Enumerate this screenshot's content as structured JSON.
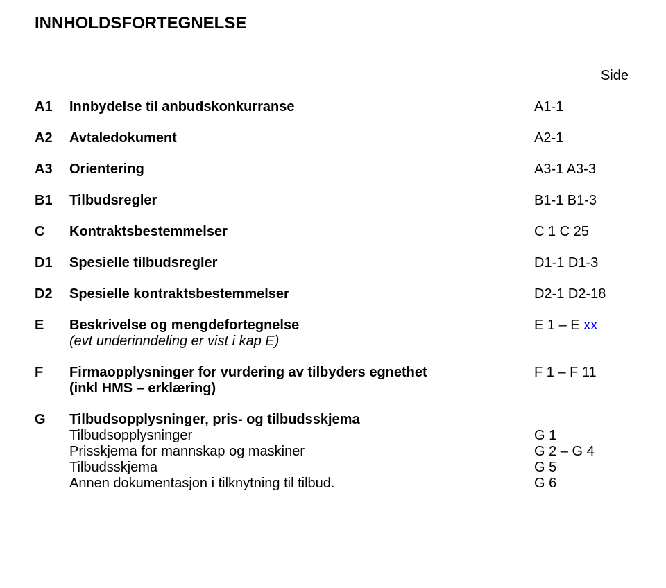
{
  "title": "INNHOLDSFORTEGNELSE",
  "side_label": "Side",
  "colors": {
    "text": "#000000",
    "blue": "#0000ff",
    "background": "#ffffff"
  },
  "rows": {
    "a1": {
      "code": "A1",
      "desc": "Innbydelse til anbudskonkurranse",
      "pages": "A1-1"
    },
    "a2": {
      "code": "A2",
      "desc": "Avtaledokument",
      "pages": "A2-1"
    },
    "a3": {
      "code": "A3",
      "desc": "Orientering",
      "pages": "A3-1 A3-3"
    },
    "b1": {
      "code": "B1",
      "desc": "Tilbudsregler",
      "pages": "B1-1 B1-3"
    },
    "c": {
      "code": "C",
      "desc": "Kontraktsbestemmelser",
      "pages": "C 1 C 25"
    },
    "d1": {
      "code": "D1",
      "desc": "Spesielle tilbudsregler",
      "pages": "D1-1 D1-3"
    },
    "d2": {
      "code": "D2",
      "desc": "Spesielle kontraktsbestemmelser",
      "pages": "D2-1 D2-18"
    },
    "e": {
      "code": "E",
      "desc": "Beskrivelse og mengdefortegnelse",
      "sub_desc": "(evt underinndeling er vist i kap E)",
      "pages_prefix": "E 1 – E ",
      "pages_xx": "xx"
    },
    "f": {
      "code": "F",
      "desc": "Firmaopplysninger for vurdering av tilbyders egnethet",
      "sub_desc": "(inkl HMS – erklæring)",
      "pages": "F 1 – F 11"
    },
    "g": {
      "code": "G",
      "desc": "Tilbudsopplysninger, pris- og tilbudsskjema",
      "subs": {
        "g1": {
          "desc": "Tilbudsopplysninger",
          "pages": "G 1"
        },
        "g2": {
          "desc": "Prisskjema for mannskap og maskiner",
          "pages": "G 2 – G 4"
        },
        "g3": {
          "desc": "Tilbudsskjema",
          "pages": "G 5"
        },
        "g4": {
          "desc": "Annen dokumentasjon i tilknytning til tilbud.",
          "pages": "G 6"
        }
      }
    }
  }
}
